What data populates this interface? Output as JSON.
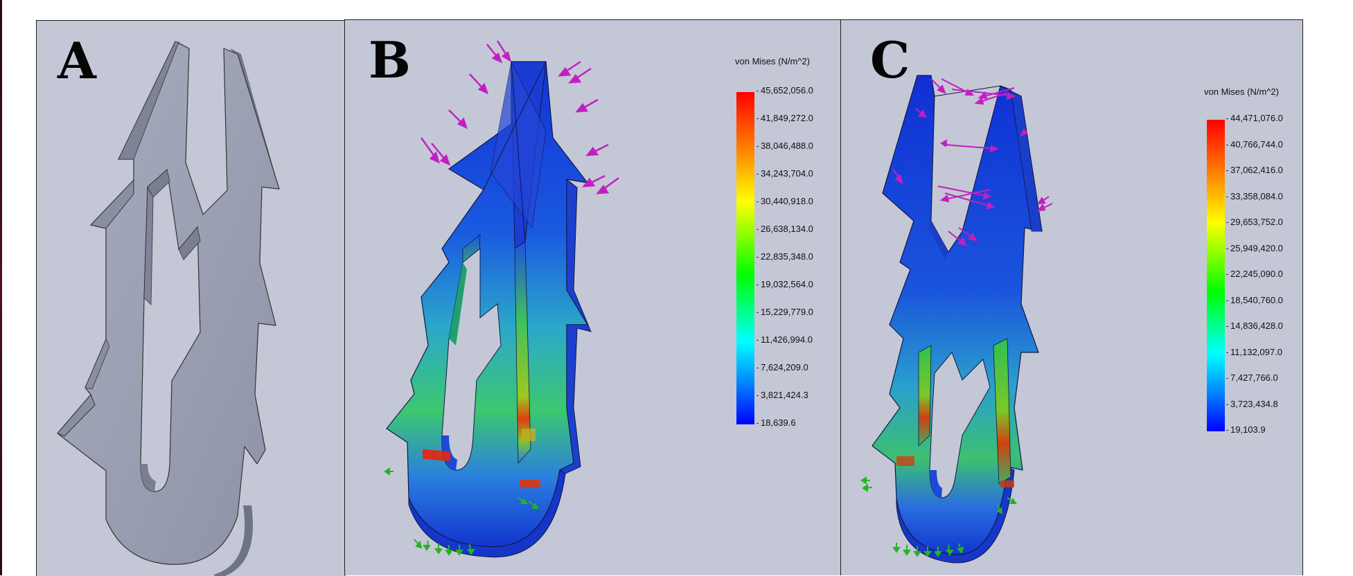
{
  "panels": {
    "a": {
      "letter": "A"
    },
    "b": {
      "letter": "B",
      "legend": {
        "title": "von Mises (N/m^2)",
        "ticks": [
          "45,652,056.0",
          "41,849,272.0",
          "38,046,488.0",
          "34,243,704.0",
          "30,440,918.0",
          "26,638,134.0",
          "22,835,348.0",
          "19,032,564.0",
          "15,229,779.0",
          "11,426,994.0",
          "7,624,209.0",
          "3,821,424.3",
          "18,639.6"
        ]
      }
    },
    "c": {
      "letter": "C",
      "legend": {
        "title": "von Mises (N/m^2)",
        "ticks": [
          "44,471,076.0",
          "40,766,744.0",
          "37,062,416.0",
          "33,358,084.0",
          "29,653,752.0",
          "25,949,420.0",
          "22,245,090.0",
          "18,540,760.0",
          "14,836,428.0",
          "11,132,097.0",
          "7,427,766.0",
          "3,723,434.8",
          "19,103.9"
        ]
      }
    }
  },
  "colors": {
    "panel_bg": "#c4c7d6",
    "model_gray": "#9b9fb3",
    "stress_low": "#0a2ad8",
    "stress_high": "#ff1a00",
    "load_arrow": "#c21fc2",
    "fixture_arrow": "#22b422"
  },
  "icons": [
    "load-arrow-icon",
    "fixture-arrow-icon"
  ]
}
